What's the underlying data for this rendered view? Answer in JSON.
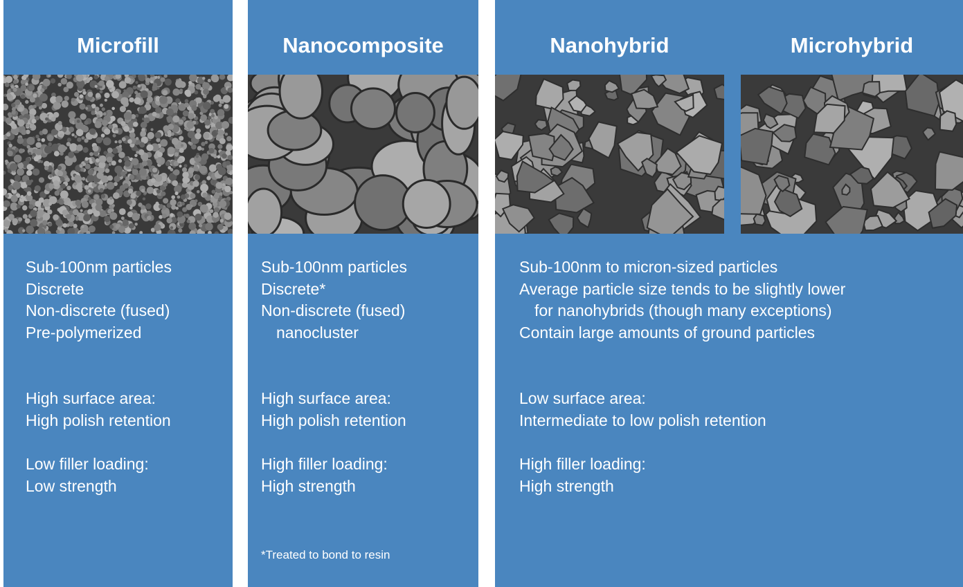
{
  "panels": [
    {
      "headers": [
        "Microfill"
      ],
      "groups": [
        [
          "Sub-100nm particles",
          "Discrete",
          "Non-discrete (fused)",
          "Pre-polymerized"
        ],
        [
          "High surface area:",
          "High polish retention"
        ],
        [
          "Low filler loading:",
          "Low strength"
        ]
      ]
    },
    {
      "headers": [
        "Nanocomposite"
      ],
      "groups": [
        [
          "Sub-100nm particles",
          "Discrete*",
          "Non-discrete (fused)",
          "nanocluster"
        ],
        [
          "High surface area:",
          "High polish retention"
        ],
        [
          "High filler loading:",
          "High strength"
        ]
      ],
      "footnote": "*Treated to bond to resin"
    },
    {
      "headers": [
        "Nanohybrid",
        "Microhybrid"
      ],
      "groups": [
        [
          "Sub-100nm to micron-sized particles",
          "Average particle size tends to be slightly lower",
          "for nanohybrids (though many exceptions)",
          "Contain large amounts of ground particles"
        ],
        [
          "Low surface area:",
          "Intermediate to low polish retention"
        ],
        [
          "High filler loading:",
          "High strength"
        ]
      ]
    }
  ]
}
